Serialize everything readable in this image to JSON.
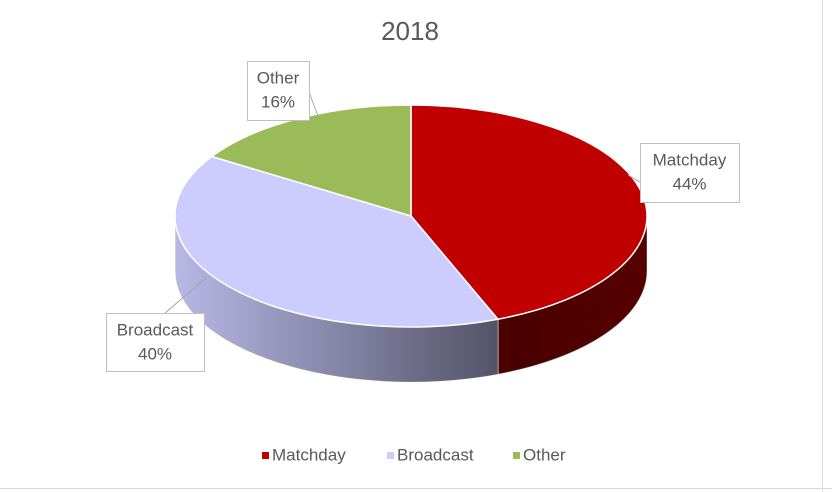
{
  "chart_data": {
    "type": "pie3d",
    "title": "2018",
    "categories": [
      "Matchday",
      "Broadcast",
      "Other"
    ],
    "values": [
      44,
      40,
      16
    ],
    "value_labels": [
      "44%",
      "40%",
      "16%"
    ],
    "colors": [
      "#c00000",
      "#ccccff",
      "#9bbb59"
    ],
    "legend": "bottom"
  }
}
